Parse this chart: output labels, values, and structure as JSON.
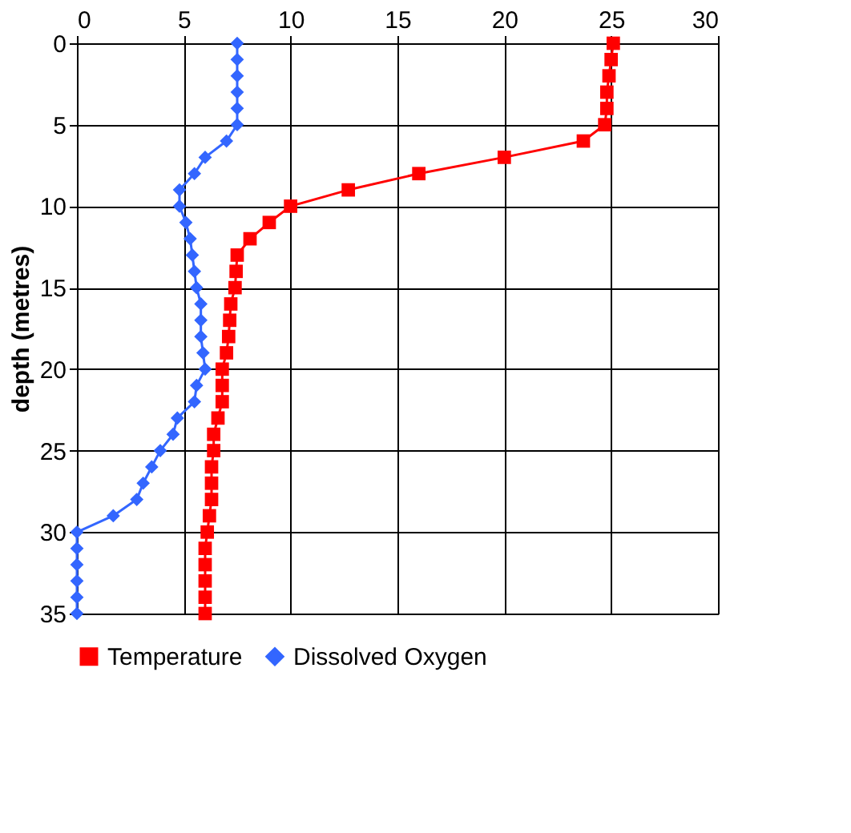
{
  "chart_data": {
    "type": "line",
    "ylabel": "depth (metres)",
    "xlim": [
      0,
      30
    ],
    "xticks": [
      0,
      5,
      10,
      15,
      20,
      25,
      30
    ],
    "ylim": [
      35,
      0
    ],
    "yticks": [
      0,
      5,
      10,
      15,
      20,
      25,
      30,
      35
    ],
    "grid": true,
    "legend": "bottom",
    "series": [
      {
        "name": "Temperature",
        "color": "#ff0000",
        "marker": "square",
        "x": [
          25.1,
          25.0,
          24.9,
          24.8,
          24.8,
          24.7,
          23.7,
          20,
          16,
          12.7,
          10.0,
          9.0,
          8.1,
          7.5,
          7.45,
          7.4,
          7.2,
          7.15,
          7.1,
          7.0,
          6.8,
          6.8,
          6.8,
          6.6,
          6.4,
          6.4,
          6.3,
          6.3,
          6.3,
          6.2,
          6.1,
          6.0,
          6.0,
          6.0,
          6.0,
          6.0
        ],
        "values": [
          0,
          1,
          2,
          3,
          4,
          5,
          6,
          7,
          8,
          9,
          10,
          11,
          12,
          13,
          14,
          15,
          16,
          17,
          18,
          19,
          20,
          21,
          22,
          23,
          24,
          25,
          26,
          27,
          28,
          29,
          30,
          31,
          32,
          33,
          34,
          35
        ]
      },
      {
        "name": "Dissolved Oxygen",
        "color": "#3366ff",
        "marker": "diamond",
        "x": [
          7.5,
          7.5,
          7.5,
          7.5,
          7.5,
          7.5,
          7.0,
          6.0,
          5.5,
          4.8,
          4.8,
          5.1,
          5.3,
          5.4,
          5.5,
          5.6,
          5.8,
          5.8,
          5.8,
          5.9,
          6.0,
          5.6,
          5.5,
          4.7,
          4.5,
          3.9,
          3.5,
          3.1,
          2.8,
          1.7,
          0,
          0,
          0,
          0,
          0,
          0
        ],
        "values": [
          0,
          1,
          2,
          3,
          4,
          5,
          6,
          7,
          8,
          9,
          10,
          11,
          12,
          13,
          14,
          15,
          16,
          17,
          18,
          19,
          20,
          21,
          22,
          23,
          24,
          25,
          26,
          27,
          28,
          29,
          30,
          31,
          32,
          33,
          34,
          35
        ]
      }
    ]
  }
}
